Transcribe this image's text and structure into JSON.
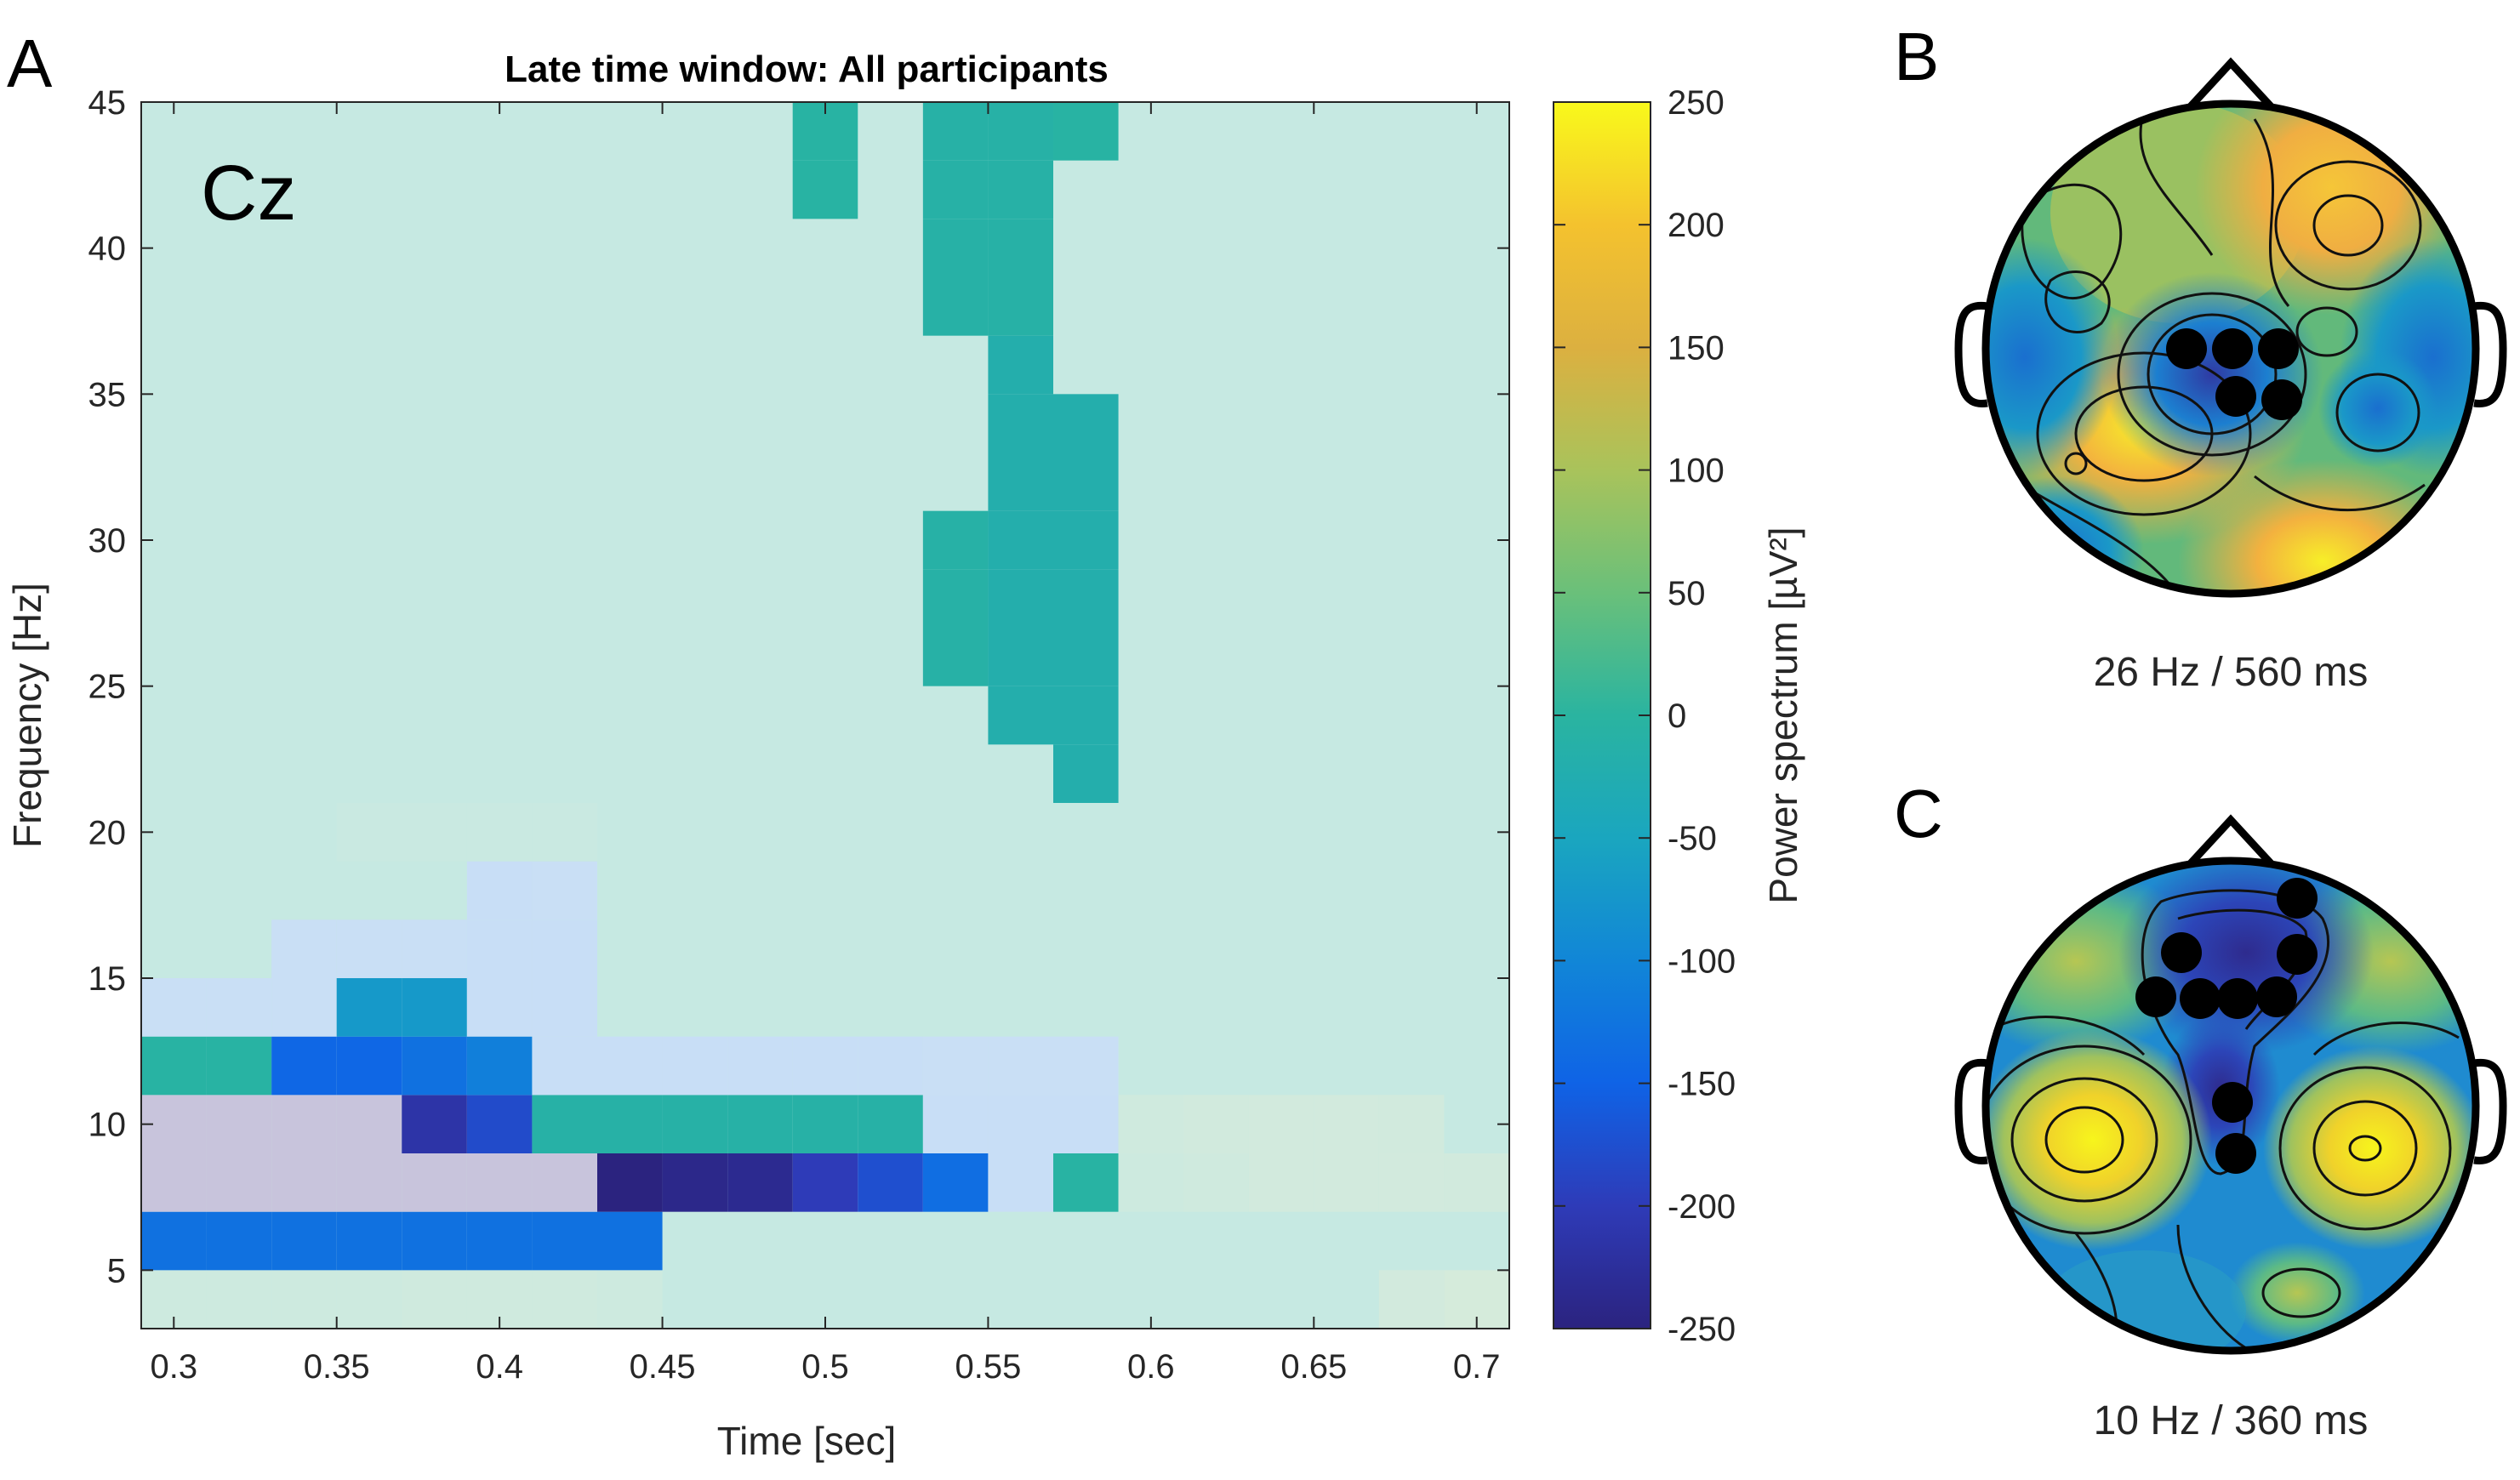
{
  "panels": {
    "a": "A",
    "b": "B",
    "c": "C"
  },
  "chart_data": {
    "type": "heatmap",
    "title": "Late time window: All participants",
    "channel_label": "Cz",
    "xlabel": "Time [sec]",
    "ylabel": "Frequency [Hz]",
    "xlim": [
      0.29,
      0.71
    ],
    "ylim": [
      3,
      45
    ],
    "x_ticks": [
      0.3,
      0.35,
      0.4,
      0.45,
      0.5,
      0.55,
      0.6,
      0.65,
      0.7
    ],
    "x_tick_labels": [
      "0.3",
      "0.35",
      "0.4",
      "0.45",
      "0.5",
      "0.55",
      "0.6",
      "0.65",
      "0.7"
    ],
    "y_ticks": [
      5,
      10,
      15,
      20,
      25,
      30,
      35,
      40,
      45
    ],
    "y_tick_labels": [
      "5",
      "10",
      "15",
      "20",
      "25",
      "30",
      "35",
      "40",
      "45"
    ],
    "x_bin_width": 0.02,
    "y_bin_height": 2,
    "background_value": 30,
    "cells": [
      {
        "t": 0.3,
        "f": 4,
        "v": 40
      },
      {
        "t": 0.32,
        "f": 4,
        "v": 40
      },
      {
        "t": 0.34,
        "f": 4,
        "v": 40
      },
      {
        "t": 0.36,
        "f": 4,
        "v": 40
      },
      {
        "t": 0.38,
        "f": 4,
        "v": 45
      },
      {
        "t": 0.4,
        "f": 4,
        "v": 45
      },
      {
        "t": 0.42,
        "f": 4,
        "v": 45
      },
      {
        "t": 0.44,
        "f": 4,
        "v": 40
      },
      {
        "t": 0.68,
        "f": 4,
        "v": 55
      },
      {
        "t": 0.7,
        "f": 4,
        "v": 65
      },
      {
        "t": 0.3,
        "f": 6,
        "v": -130
      },
      {
        "t": 0.32,
        "f": 6,
        "v": -130
      },
      {
        "t": 0.34,
        "f": 6,
        "v": -130
      },
      {
        "t": 0.36,
        "f": 6,
        "v": -130
      },
      {
        "t": 0.38,
        "f": 6,
        "v": -130
      },
      {
        "t": 0.4,
        "f": 6,
        "v": -130
      },
      {
        "t": 0.42,
        "f": 6,
        "v": -130
      },
      {
        "t": 0.44,
        "f": 6,
        "v": -130
      },
      {
        "t": 0.3,
        "f": 8,
        "v": -320
      },
      {
        "t": 0.32,
        "f": 8,
        "v": -320
      },
      {
        "t": 0.34,
        "f": 8,
        "v": -320
      },
      {
        "t": 0.36,
        "f": 8,
        "v": -260
      },
      {
        "t": 0.38,
        "f": 8,
        "v": -260
      },
      {
        "t": 0.4,
        "f": 8,
        "v": -260
      },
      {
        "t": 0.42,
        "f": 8,
        "v": -260
      },
      {
        "t": 0.44,
        "f": 8,
        "v": -250
      },
      {
        "t": 0.46,
        "f": 8,
        "v": -240
      },
      {
        "t": 0.48,
        "f": 8,
        "v": -235
      },
      {
        "t": 0.5,
        "f": 8,
        "v": -200
      },
      {
        "t": 0.52,
        "f": 8,
        "v": -175
      },
      {
        "t": 0.54,
        "f": 8,
        "v": -135
      },
      {
        "t": 0.56,
        "f": 8,
        "v": 0
      },
      {
        "t": 0.58,
        "f": 8,
        "v": -5
      },
      {
        "t": 0.6,
        "f": 8,
        "v": 40
      },
      {
        "t": 0.62,
        "f": 8,
        "v": 45
      },
      {
        "t": 0.64,
        "f": 8,
        "v": 55
      },
      {
        "t": 0.66,
        "f": 8,
        "v": 55
      },
      {
        "t": 0.68,
        "f": 8,
        "v": 55
      },
      {
        "t": 0.7,
        "f": 8,
        "v": 50
      },
      {
        "t": 0.3,
        "f": 10,
        "v": -255
      },
      {
        "t": 0.32,
        "f": 10,
        "v": -255
      },
      {
        "t": 0.34,
        "f": 10,
        "v": -255
      },
      {
        "t": 0.36,
        "f": 10,
        "v": -255
      },
      {
        "t": 0.38,
        "f": 10,
        "v": -215
      },
      {
        "t": 0.4,
        "f": 10,
        "v": -180
      },
      {
        "t": 0.42,
        "f": 10,
        "v": -10
      },
      {
        "t": 0.44,
        "f": 10,
        "v": -10
      },
      {
        "t": 0.46,
        "f": 10,
        "v": -10
      },
      {
        "t": 0.48,
        "f": 10,
        "v": -10
      },
      {
        "t": 0.5,
        "f": 10,
        "v": -10
      },
      {
        "t": 0.52,
        "f": 10,
        "v": -10
      },
      {
        "t": 0.54,
        "f": 10,
        "v": 0
      },
      {
        "t": 0.56,
        "f": 10,
        "v": 10
      },
      {
        "t": 0.58,
        "f": 10,
        "v": 10
      },
      {
        "t": 0.6,
        "f": 10,
        "v": 45
      },
      {
        "t": 0.62,
        "f": 10,
        "v": 50
      },
      {
        "t": 0.64,
        "f": 10,
        "v": 55
      },
      {
        "t": 0.66,
        "f": 10,
        "v": 55
      },
      {
        "t": 0.68,
        "f": 10,
        "v": 50
      },
      {
        "t": 0.3,
        "f": 12,
        "v": -5
      },
      {
        "t": 0.32,
        "f": 12,
        "v": -5
      },
      {
        "t": 0.34,
        "f": 12,
        "v": -145
      },
      {
        "t": 0.36,
        "f": 12,
        "v": -145
      },
      {
        "t": 0.38,
        "f": 12,
        "v": -130
      },
      {
        "t": 0.4,
        "f": 12,
        "v": -110
      },
      {
        "t": 0.42,
        "f": 12,
        "v": 10
      },
      {
        "t": 0.44,
        "f": 12,
        "v": 10
      },
      {
        "t": 0.46,
        "f": 12,
        "v": 10
      },
      {
        "t": 0.48,
        "f": 12,
        "v": 10
      },
      {
        "t": 0.5,
        "f": 12,
        "v": 15
      },
      {
        "t": 0.52,
        "f": 12,
        "v": 15
      },
      {
        "t": 0.54,
        "f": 12,
        "v": 20
      },
      {
        "t": 0.56,
        "f": 12,
        "v": 20
      },
      {
        "t": 0.58,
        "f": 12,
        "v": 20
      },
      {
        "t": 0.3,
        "f": 14,
        "v": 20
      },
      {
        "t": 0.32,
        "f": 14,
        "v": 20
      },
      {
        "t": 0.34,
        "f": 14,
        "v": 20
      },
      {
        "t": 0.36,
        "f": 14,
        "v": -70
      },
      {
        "t": 0.38,
        "f": 14,
        "v": -70
      },
      {
        "t": 0.4,
        "f": 14,
        "v": 15
      },
      {
        "t": 0.42,
        "f": 14,
        "v": 15
      },
      {
        "t": 0.34,
        "f": 16,
        "v": 20
      },
      {
        "t": 0.36,
        "f": 16,
        "v": 20
      },
      {
        "t": 0.38,
        "f": 16,
        "v": 20
      },
      {
        "t": 0.4,
        "f": 16,
        "v": 15
      },
      {
        "t": 0.42,
        "f": 16,
        "v": 15
      },
      {
        "t": 0.4,
        "f": 18,
        "v": 15
      },
      {
        "t": 0.42,
        "f": 18,
        "v": 20
      },
      {
        "t": 0.36,
        "f": 20,
        "v": 25
      },
      {
        "t": 0.38,
        "f": 20,
        "v": 25
      },
      {
        "t": 0.4,
        "f": 20,
        "v": 25
      },
      {
        "t": 0.42,
        "f": 20,
        "v": 25
      },
      {
        "t": 0.58,
        "f": 22,
        "v": -20
      },
      {
        "t": 0.56,
        "f": 24,
        "v": -20
      },
      {
        "t": 0.58,
        "f": 24,
        "v": -20
      },
      {
        "t": 0.54,
        "f": 26,
        "v": -10
      },
      {
        "t": 0.56,
        "f": 26,
        "v": -20
      },
      {
        "t": 0.58,
        "f": 26,
        "v": -20
      },
      {
        "t": 0.54,
        "f": 28,
        "v": -10
      },
      {
        "t": 0.56,
        "f": 28,
        "v": -20
      },
      {
        "t": 0.58,
        "f": 28,
        "v": -20
      },
      {
        "t": 0.54,
        "f": 30,
        "v": -10
      },
      {
        "t": 0.56,
        "f": 30,
        "v": -20
      },
      {
        "t": 0.58,
        "f": 30,
        "v": -20
      },
      {
        "t": 0.56,
        "f": 32,
        "v": -20
      },
      {
        "t": 0.58,
        "f": 32,
        "v": -20
      },
      {
        "t": 0.56,
        "f": 34,
        "v": -20
      },
      {
        "t": 0.58,
        "f": 34,
        "v": -20
      },
      {
        "t": 0.56,
        "f": 36,
        "v": -20
      },
      {
        "t": 0.54,
        "f": 38,
        "v": -10
      },
      {
        "t": 0.56,
        "f": 38,
        "v": -10
      },
      {
        "t": 0.54,
        "f": 40,
        "v": -10
      },
      {
        "t": 0.56,
        "f": 40,
        "v": -10
      },
      {
        "t": 0.5,
        "f": 42,
        "v": -5
      },
      {
        "t": 0.54,
        "f": 42,
        "v": -10
      },
      {
        "t": 0.56,
        "f": 42,
        "v": -10
      },
      {
        "t": 0.5,
        "f": 44,
        "v": -5
      },
      {
        "t": 0.54,
        "f": 44,
        "v": -10
      },
      {
        "t": 0.56,
        "f": 44,
        "v": -10
      },
      {
        "t": 0.58,
        "f": 44,
        "v": -5
      }
    ],
    "colorbar": {
      "label": "Power spectrum [µV²]",
      "range": [
        -250,
        250
      ],
      "ticks": [
        250,
        200,
        150,
        100,
        50,
        0,
        -50,
        -100,
        -150,
        -200,
        -250
      ],
      "tick_labels": [
        "250",
        "200",
        "150",
        "100",
        "50",
        "0",
        "-50",
        "-100",
        "-150",
        "-200",
        "-250"
      ],
      "colormap": [
        "#2b237f",
        "#2e3bb8",
        "#0f63e6",
        "#1186d7",
        "#1aa6bf",
        "#2ab4a0",
        "#6ac07a",
        "#a9c35b",
        "#dcb040",
        "#f4c22e",
        "#f9f91b"
      ],
      "saturated_below_color": "#c8c4dc"
    }
  },
  "topoplots": [
    {
      "caption": "26 Hz / 560 ms",
      "electrodes_marked": 5,
      "colors": {
        "positive": "#f3b13f",
        "neutral": "#62b97b",
        "negative": "#1c7fd0",
        "strong_negative": "#2f3aa3",
        "peak": "#f7ef28"
      }
    },
    {
      "caption": "10 Hz / 360 ms",
      "electrodes_marked": 9,
      "colors": {
        "positive": "#e0c13f",
        "neutral": "#36b0a8",
        "negative": "#1c74cc",
        "strong_negative": "#2e2b8e",
        "peak": "#f7f51c"
      }
    }
  ]
}
